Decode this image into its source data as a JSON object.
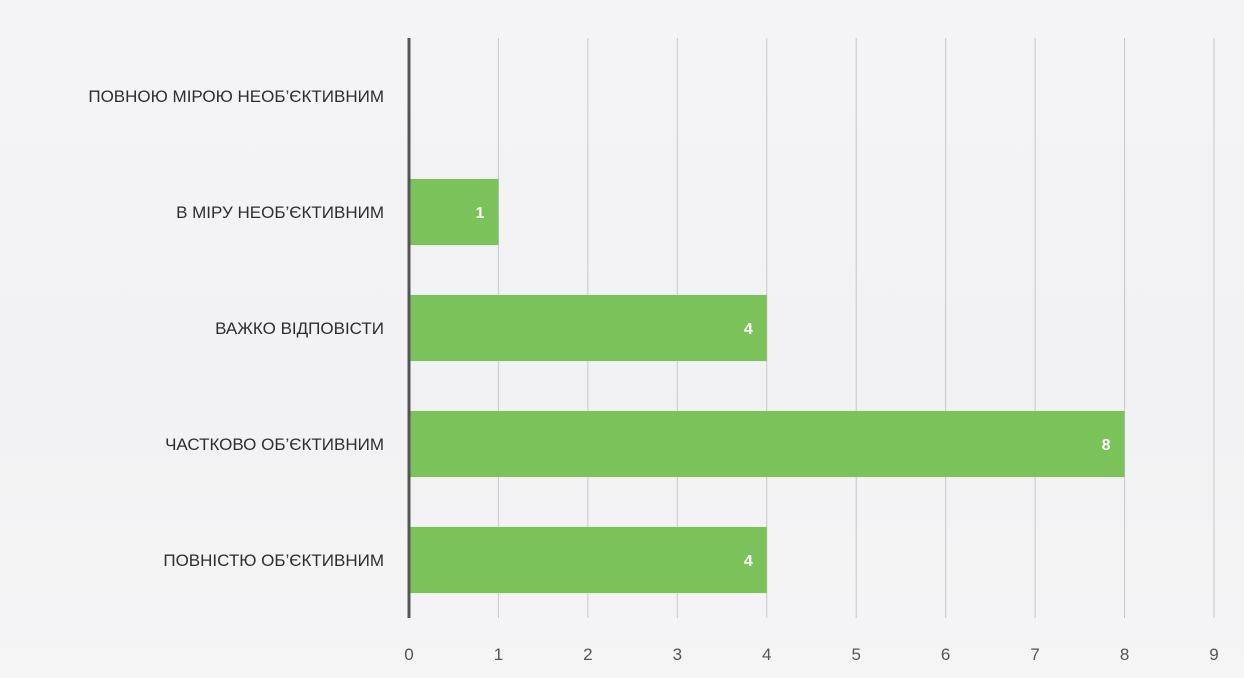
{
  "chart_data": {
    "type": "bar",
    "orientation": "horizontal",
    "categories": [
      "ПОВНОЮ МІРОЮ НЕОБ’ЄКТИВНИМ",
      "В МІРУ НЕОБ’ЄКТИВНИМ",
      "ВАЖКО ВІДПОВІСТИ",
      "ЧАСТКОВО ОБ’ЄКТИВНИМ",
      "ПОВНІСТЮ ОБ’ЄКТИВНИМ"
    ],
    "values": [
      0,
      1,
      4,
      8,
      4
    ],
    "data_labels": [
      "",
      "1",
      "4",
      "8",
      "4"
    ],
    "xlim": [
      0,
      9
    ],
    "xticks": [
      "0",
      "1",
      "2",
      "3",
      "4",
      "5",
      "6",
      "7",
      "8",
      "9"
    ],
    "grid": "vertical",
    "bar_color": "#7cc25b",
    "title": "",
    "xlabel": "",
    "ylabel": ""
  }
}
